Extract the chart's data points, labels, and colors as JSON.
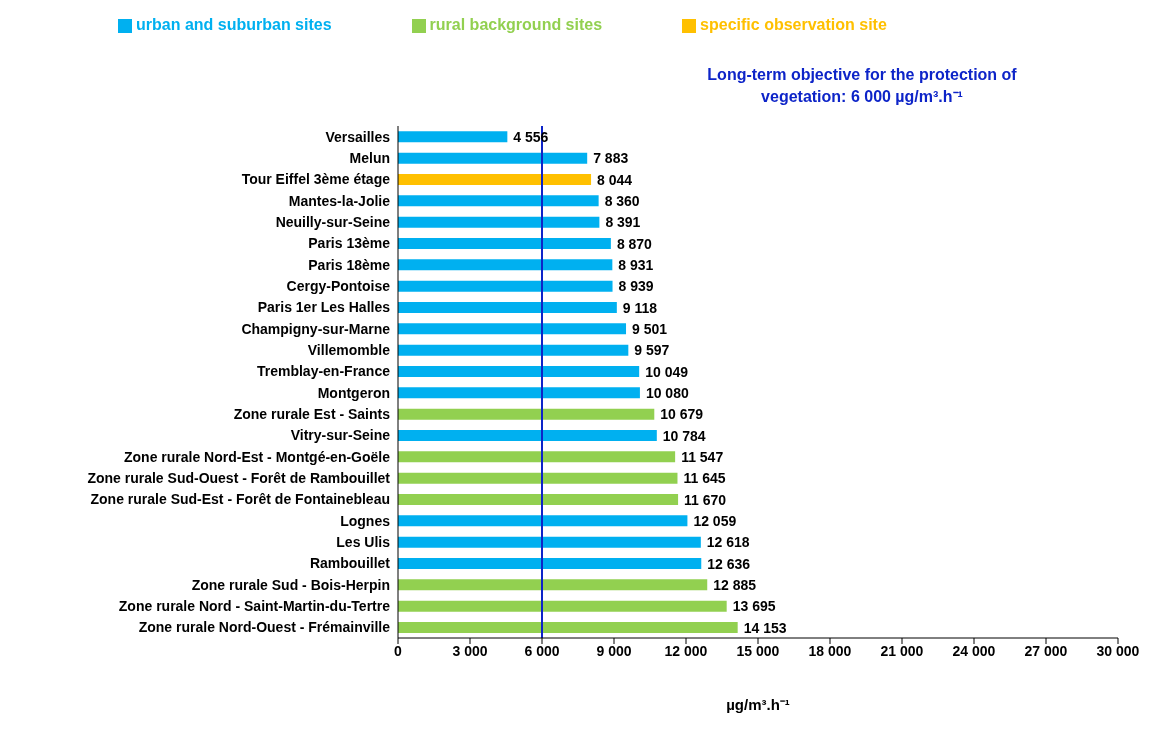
{
  "chart_data": {
    "type": "bar",
    "orientation": "horizontal",
    "stacked": true,
    "xlabel": "µg/m³.h⁻¹",
    "categories": [
      "Versailles",
      "Melun",
      "Tour Eiffel 3ème étage",
      "Mantes-la-Jolie",
      "Neuilly-sur-Seine",
      "Paris 13ème",
      "Paris 18ème",
      "Cergy-Pontoise",
      "Paris 1er Les Halles",
      "Champigny-sur-Marne",
      "Villemomble",
      "Tremblay-en-France",
      "Montgeron",
      "Zone rurale Est - Saints",
      "Vitry-sur-Seine",
      "Zone rurale Nord-Est - Montgé-en-Goële",
      "Zone rurale Sud-Ouest - Forêt de Rambouillet",
      "Zone rurale Sud-Est - Forêt de Fontainebleau",
      "Lognes",
      "Les Ulis",
      "Rambouillet",
      "Zone rurale Sud - Bois-Herpin",
      "Zone rurale Nord - Saint-Martin-du-Tertre",
      "Zone rurale Nord-Ouest - Frémainville"
    ],
    "series": [
      {
        "name": "urban and suburban sites",
        "color": "#00b0f0",
        "values": [
          4556,
          7883,
          null,
          8360,
          8391,
          8870,
          8931,
          8939,
          9118,
          9501,
          9597,
          10049,
          10080,
          null,
          10784,
          null,
          null,
          null,
          12059,
          12618,
          12636,
          null,
          null,
          null
        ]
      },
      {
        "name": "rural background sites",
        "color": "#92d050",
        "values": [
          null,
          null,
          null,
          null,
          null,
          null,
          null,
          null,
          null,
          null,
          null,
          null,
          null,
          10679,
          null,
          11547,
          11645,
          11670,
          null,
          null,
          null,
          12885,
          13695,
          14153
        ]
      },
      {
        "name": "specific observation site",
        "color": "#ffc000",
        "values": [
          null,
          null,
          8044,
          null,
          null,
          null,
          null,
          null,
          null,
          null,
          null,
          null,
          null,
          null,
          null,
          null,
          null,
          null,
          null,
          null,
          null,
          null,
          null,
          null
        ]
      }
    ],
    "value_labels": [
      "4 556",
      "7 883",
      "8 044",
      "8 360",
      "8 391",
      "8 870",
      "8 931",
      "8 939",
      "9 118",
      "9 501",
      "9 597",
      "10 049",
      "10 080",
      "10 679",
      "10 784",
      "11 547",
      "11 645",
      "11 670",
      "12 059",
      "12 618",
      "12 636",
      "12 885",
      "13 695",
      "14 153"
    ],
    "xlim": [
      0,
      30000
    ],
    "xticks": [
      0,
      {
        "value": 3000,
        "label": "3 000"
      },
      {
        "value": 6000,
        "label": "6 000"
      },
      {
        "value": 9000,
        "label": "9 000"
      },
      {
        "value": 12000,
        "label": "12 000"
      },
      {
        "value": 15000,
        "label": "15 000"
      },
      {
        "value": 18000,
        "label": "18 000"
      },
      {
        "value": 21000,
        "label": "21 000"
      },
      {
        "value": 24000,
        "label": "24 000"
      },
      {
        "value": 27000,
        "label": "27 000"
      },
      {
        "value": 30000,
        "label": "30 000"
      }
    ],
    "ref_lines": [
      {
        "axis": "x",
        "value": 6000,
        "label": "Long-term objective for the protection of vegetation: 6 000 µg/m³.h⁻¹",
        "color": "#0d24c8"
      }
    ],
    "grid": false,
    "legend": "top"
  }
}
